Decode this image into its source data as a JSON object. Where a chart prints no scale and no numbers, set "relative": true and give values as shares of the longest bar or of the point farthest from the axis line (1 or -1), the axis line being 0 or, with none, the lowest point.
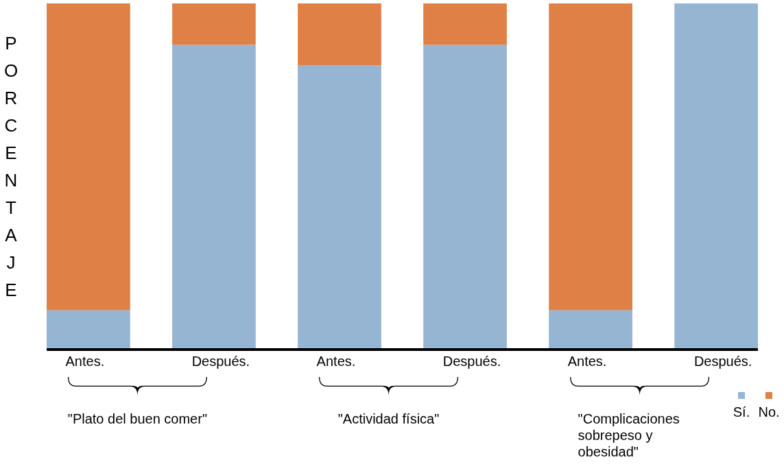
{
  "chart_data": {
    "type": "bar",
    "stacked": true,
    "relative": true,
    "ylabel": "PORCENTAJE",
    "categories": [
      "Antes.",
      "Después.",
      "Antes.",
      "Después.",
      "Antes.",
      "Después."
    ],
    "series": [
      {
        "name": "Sí.",
        "color": "#95b5d3",
        "values": [
          0.11,
          0.88,
          0.82,
          0.88,
          0.11,
          1
        ]
      },
      {
        "name": "No.",
        "color": "#df8047",
        "values": [
          0.89,
          0.12,
          0.18,
          0.12,
          0.89,
          0
        ]
      }
    ],
    "annotations": [
      "\"Plato del buen comer\"",
      "\"Actividad física\"",
      "\"Complicaciones sobrepeso y obesidad\""
    ],
    "legend": "bottom right"
  }
}
